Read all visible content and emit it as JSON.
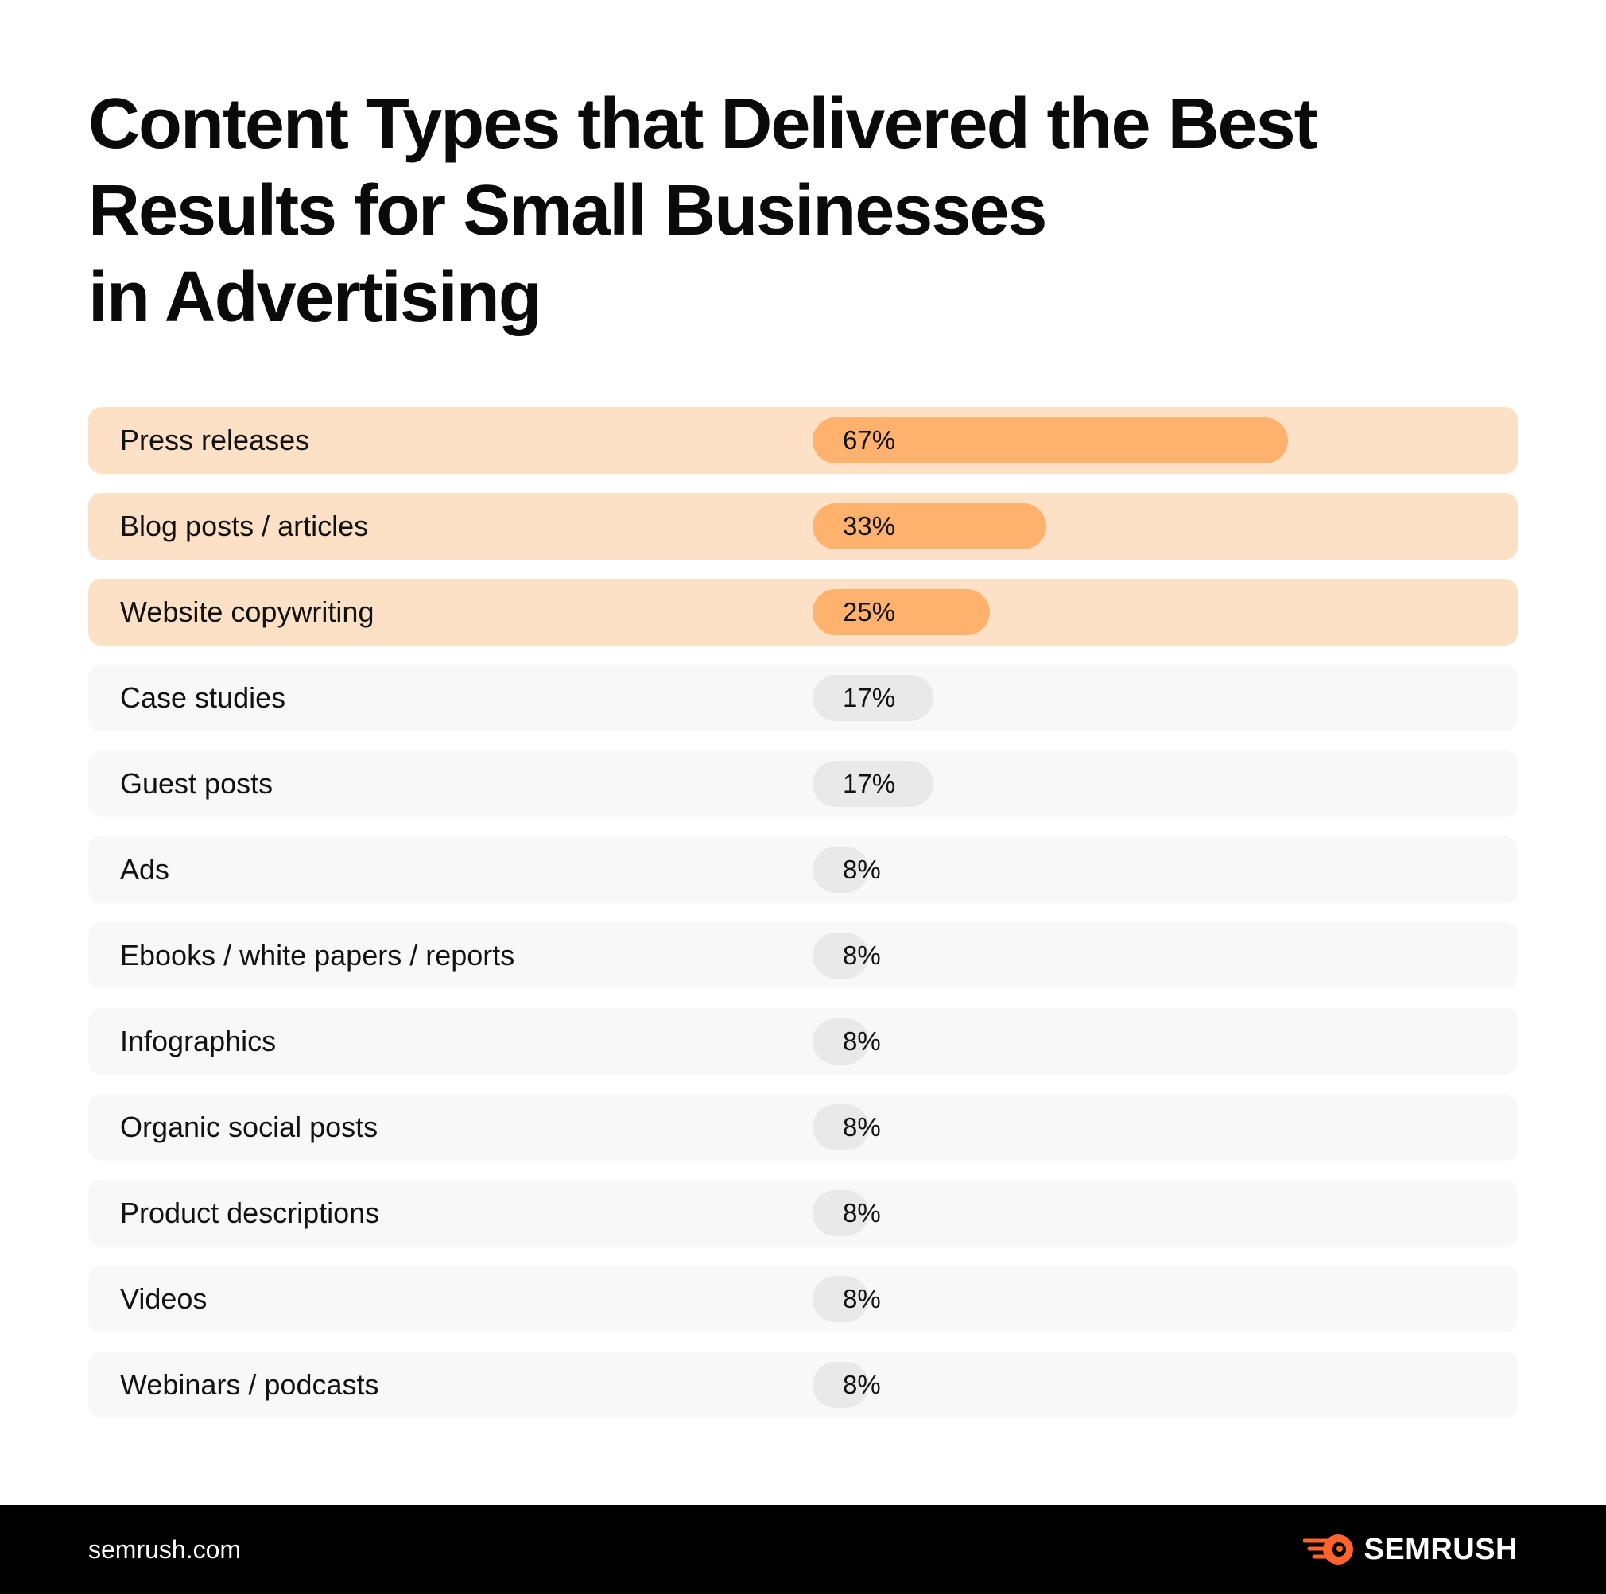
{
  "title_lines": [
    "Content Types that Delivered the Best",
    "Results for Small Businesses",
    "in Advertising"
  ],
  "footer": {
    "site": "semrush.com",
    "brand": "SEMRUSH"
  },
  "colors": {
    "highlight_row": "#fde1c7",
    "highlight_bar": "#ffb26e",
    "row": "#f8f8f8",
    "bar": "#e9e9e9",
    "footer_bg": "#000000",
    "brand_orange": "#ff642d"
  },
  "chart_data": {
    "type": "bar",
    "orientation": "horizontal",
    "title": "Content Types that Delivered the Best Results for Small Businesses in Advertising",
    "categories": [
      "Press releases",
      "Blog posts / articles",
      "Website copywriting",
      "Case studies",
      "Guest posts",
      "Ads",
      "Ebooks / white papers / reports",
      "Infographics",
      "Organic social posts",
      "Product descriptions",
      "Videos",
      "Webinars / podcasts"
    ],
    "values": [
      67,
      33,
      25,
      17,
      17,
      8,
      8,
      8,
      8,
      8,
      8,
      8
    ],
    "value_labels": [
      "67%",
      "33%",
      "25%",
      "17%",
      "17%",
      "8%",
      "8%",
      "8%",
      "8%",
      "8%",
      "8%",
      "8%"
    ],
    "highlighted": [
      true,
      true,
      true,
      false,
      false,
      false,
      false,
      false,
      false,
      false,
      false,
      false
    ],
    "unit": "%",
    "xlim": [
      0,
      100
    ],
    "grid": false,
    "legend": false
  }
}
